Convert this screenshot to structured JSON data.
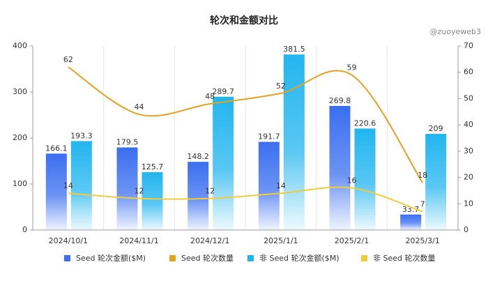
{
  "chart_data": {
    "type": "bar",
    "title": "轮次和金额对比",
    "watermark": "@zuoyeweb3",
    "categories": [
      "2024/10/1",
      "2024/11/1",
      "2024/12/1",
      "2025/1/1",
      "2025/2/1",
      "2025/3/1"
    ],
    "series": [
      {
        "name": "Seed 轮次金额($M)",
        "type": "bar",
        "color": "#3b6ff0",
        "values": [
          166.1,
          179.5,
          148.2,
          191.7,
          269.8,
          33.7
        ]
      },
      {
        "name": "Seed 轮次数量",
        "type": "line",
        "axis": "y2",
        "color": "#e6a11e",
        "values": [
          62,
          44,
          48,
          52,
          59,
          18
        ]
      },
      {
        "name": "非 Seed 轮次金额($M)",
        "type": "bar",
        "color": "#22b5ef",
        "values": [
          193.3,
          125.7,
          289.7,
          381.5,
          220.6,
          209
        ]
      },
      {
        "name": "非 Seed 轮次数量",
        "type": "line",
        "axis": "y2",
        "color": "#f0cc3a",
        "values": [
          14,
          12,
          12,
          14,
          16,
          7
        ]
      }
    ],
    "ylim": [
      0,
      400
    ],
    "yticks": [
      0,
      100,
      200,
      300,
      400
    ],
    "y2lim": [
      0,
      70
    ],
    "y2ticks": [
      0,
      10,
      20,
      30,
      40,
      50,
      60,
      70
    ],
    "grid": true
  }
}
